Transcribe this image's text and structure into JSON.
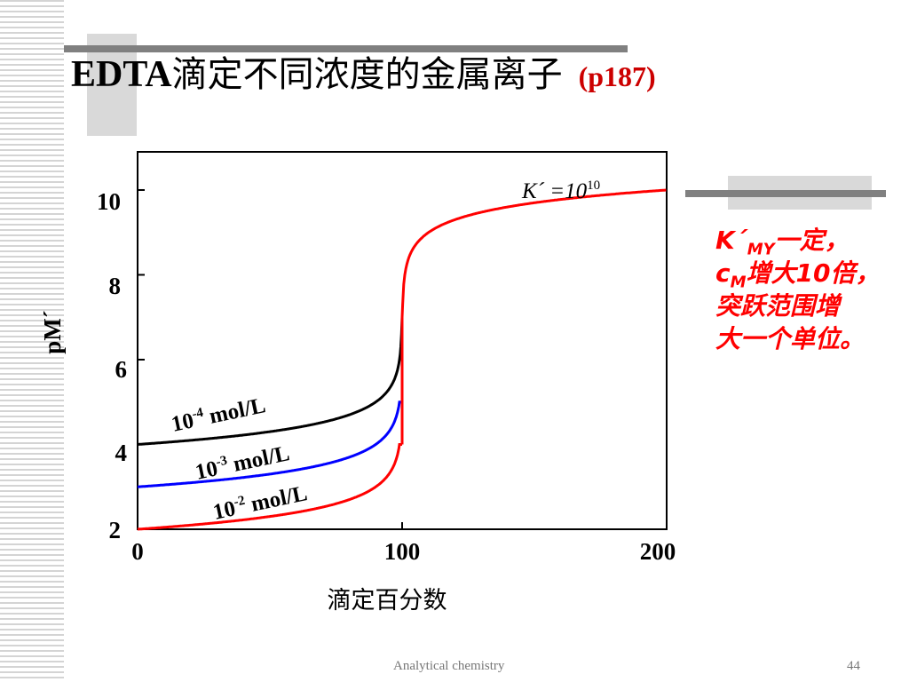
{
  "slide": {
    "title_latin": "EDTA",
    "title_cn": "滴定不同浓度的金属离子",
    "title_ref": "(p187)",
    "footer": "Analytical chemistry",
    "page_number": "44",
    "colors": {
      "accent_red": "#ff0000",
      "ref_red": "#cc0000",
      "bar_gray": "#808080",
      "box_gray": "#d9d9d9"
    }
  },
  "note": {
    "line1_main": "K´",
    "line1_sub": "MY",
    "line1_rest": "一定，",
    "line2_main": "c",
    "line2_sub": "M",
    "line2_rest": "增大10倍，",
    "line3": "突跃范围增",
    "line4": "大一个单位。"
  },
  "chart_data": {
    "type": "line",
    "xlabel": "滴定百分数",
    "ylabel": "pM´",
    "xlim": [
      0,
      200
    ],
    "ylim": [
      2,
      10.9
    ],
    "x_ticks": [
      "0",
      "100",
      "200"
    ],
    "y_ticks": [
      "2",
      "4",
      "6",
      "8",
      "10"
    ],
    "annotation": {
      "main": "K´ =10",
      "sup": "10"
    },
    "series": [
      {
        "label_base": "10",
        "label_exp": "-4",
        "label_unit": " mol/L",
        "color": "#000000",
        "start": 4.0,
        "end": 7.0
      },
      {
        "label_base": "10",
        "label_exp": "-3",
        "label_unit": " mol/L",
        "color": "#0000ff",
        "start": 3.0,
        "end": 5.0
      },
      {
        "label_base": "10",
        "label_exp": "-2",
        "label_unit": " mol/L",
        "color": "#ff0000",
        "start": 2.0,
        "end": 4.0
      }
    ],
    "post_equivalence": {
      "color": "#ff0000",
      "start": 7.0,
      "value_at_200": 10.0
    }
  }
}
